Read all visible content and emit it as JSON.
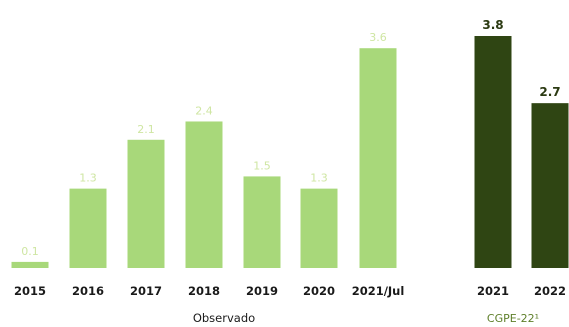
{
  "chart_data": {
    "type": "bar",
    "categories": [
      "2015",
      "2016",
      "2017",
      "2018",
      "2019",
      "2020",
      "2021/Jul",
      "2021",
      "2022"
    ],
    "values": [
      0.1,
      1.3,
      2.1,
      2.4,
      1.5,
      1.3,
      3.6,
      3.8,
      2.7
    ],
    "value_labels": [
      "0.1",
      "1.3",
      "2.1",
      "2.4",
      "1.5",
      "1.3",
      "3.6",
      "3.8",
      "2.7"
    ],
    "groups": [
      {
        "label": "Observado",
        "categories": [
          "2015",
          "2016",
          "2017",
          "2018",
          "2019",
          "2020",
          "2021/Jul"
        ],
        "color": "#a8d87a"
      },
      {
        "label": "CGPE-22¹",
        "categories": [
          "2021",
          "2022"
        ],
        "color": "#2f4513"
      }
    ],
    "ylim": [
      0,
      4.2
    ],
    "grid": false
  }
}
